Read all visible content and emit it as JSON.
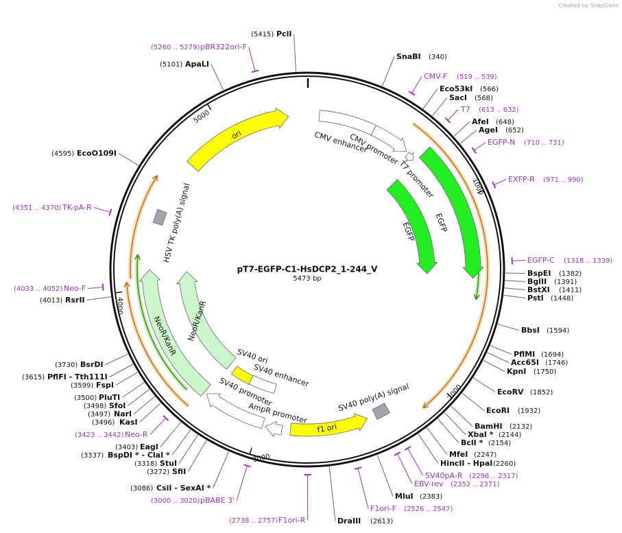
{
  "watermark": "Created by SnapGene",
  "title": "pT7-EGFP-C1-HsDCP2_1-244_V",
  "length": "5473 bp",
  "sites": [
    {
      "name": "PciI",
      "position": "(5415)"
    },
    {
      "name": "ApaLI",
      "position": "(5101)"
    },
    {
      "name": "SnaBI",
      "position": "(340)"
    },
    {
      "name": "Eco53kI",
      "position": "(566)"
    },
    {
      "name": "SacI",
      "position": "(568)"
    },
    {
      "name": "AfeI",
      "position": "(648)"
    },
    {
      "name": "AgeI",
      "position": "(652)"
    },
    {
      "name": "BspEI",
      "position": "(1382)"
    },
    {
      "name": "BglII",
      "position": "(1391)"
    },
    {
      "name": "BstXI",
      "position": "(1411)"
    },
    {
      "name": "PstI",
      "position": "(1448)"
    },
    {
      "name": "BbsI",
      "position": "(1594)"
    },
    {
      "name": "PflMI",
      "position": "(1694)"
    },
    {
      "name": "Acc65I",
      "position": "(1746)"
    },
    {
      "name": "KpnI",
      "position": "(1750)"
    },
    {
      "name": "EcoRV",
      "position": "(1852)"
    },
    {
      "name": "EcoRI",
      "position": "(1932)"
    },
    {
      "name": "BamHI",
      "position": "(2132)"
    },
    {
      "name": "XbaI *",
      "position": "(2144)"
    },
    {
      "name": "BclI *",
      "position": "(2154)"
    },
    {
      "name": "MfeI",
      "position": "(2247)"
    },
    {
      "name": "HincII  - HpaI",
      "position": "(2260)"
    },
    {
      "name": "MluI",
      "position": "(2383)"
    },
    {
      "name": "DraIII",
      "position": "(2613)"
    },
    {
      "name": "CsiI  - SexAI *",
      "position": "(3086)"
    },
    {
      "name": "SfiI",
      "position": "(3272)"
    },
    {
      "name": "StuI",
      "position": "(3318)"
    },
    {
      "name": "BspDI *  - ClaI *",
      "position": "(3337)"
    },
    {
      "name": "EagI",
      "position": "(3403)"
    },
    {
      "name": "KasI",
      "position": "(3496)"
    },
    {
      "name": "NarI",
      "position": "(3497)"
    },
    {
      "name": "SfoI",
      "position": "(3498)"
    },
    {
      "name": "PluTI",
      "position": "(3500)"
    },
    {
      "name": "FspI",
      "position": "(3599)"
    },
    {
      "name": "PflFI  - Tth111I",
      "position": "(3615)"
    },
    {
      "name": "BsrDI",
      "position": "(3730)"
    },
    {
      "name": "RsrII",
      "position": "(4013)"
    },
    {
      "name": "EcoO109I",
      "position": "(4595)"
    }
  ],
  "primers": [
    {
      "name": "pBR322ori-F",
      "range": "(5260 .. 5279)"
    },
    {
      "name": "CMV-F",
      "range": "(519 .. 539)"
    },
    {
      "name": "T7",
      "range": "(613 .. 632)"
    },
    {
      "name": "EGFP-N",
      "range": "(710 .. 731)"
    },
    {
      "name": "EXFP-R",
      "range": "(971 .. 990)"
    },
    {
      "name": "EGFP-C",
      "range": "(1318 .. 1339)"
    },
    {
      "name": "SV40pA-R",
      "range": "(2298 .. 2317)"
    },
    {
      "name": "EBV-rev",
      "range": "(2352 .. 2371)"
    },
    {
      "name": "F1ori-F",
      "range": "(2526 .. 2547)"
    },
    {
      "name": "F1ori-R",
      "range": "(2738 .. 2757)"
    },
    {
      "name": "pBABE 3'",
      "range": "(3000 .. 3020)"
    },
    {
      "name": "Neo-R",
      "range": "(3423 .. 3442)"
    },
    {
      "name": "Neo-F",
      "range": "(4033 .. 4052)"
    },
    {
      "name": "TK-pA-R",
      "range": "(4351 .. 4370)"
    }
  ],
  "features": [
    "ori",
    "CMV enhancer",
    "CMV promoter",
    "T7 promoter",
    "EGFP",
    "EGFP",
    "HSV TK poly(A) signal",
    "NeoR/KanR",
    "NeoR/KanR",
    "SV40 ori",
    "SV40 enhancer",
    "SV40 promoter",
    "AmpR promoter",
    "f1 ori",
    "SV40 poly(A) signal"
  ],
  "ruler": [
    1000,
    2000,
    3000,
    4000,
    5000
  ]
}
